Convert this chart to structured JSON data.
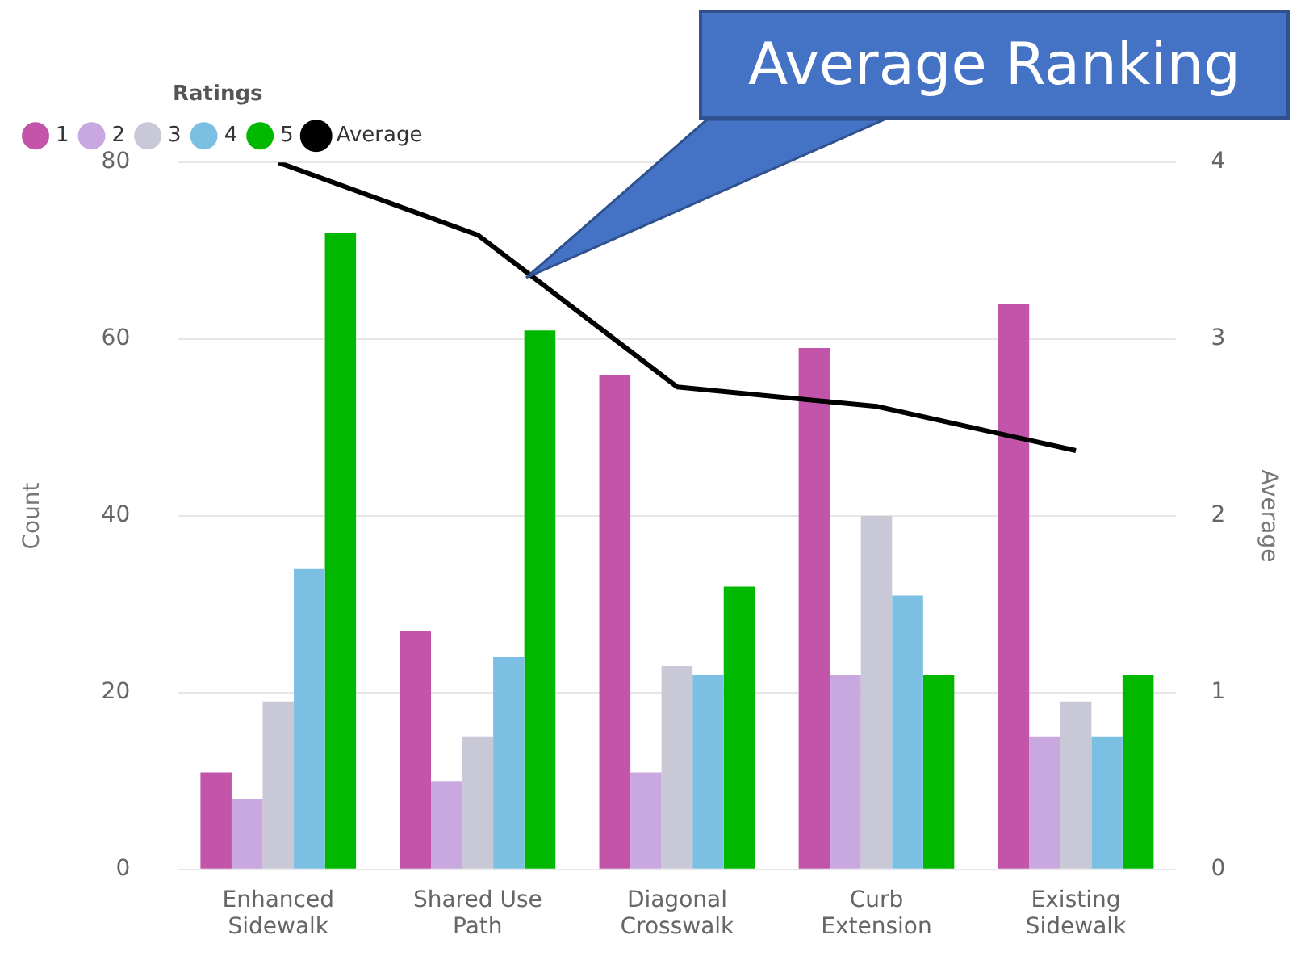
{
  "chart_data": {
    "type": "bar",
    "ylabel": "Count",
    "y2label": "Average",
    "legend_title": "Ratings",
    "legend": "top left",
    "grid": "y",
    "marker": "none",
    "annotations": [
      "Average Ranking"
    ],
    "categories": [
      "Enhanced Sidewalk",
      "Shared Use Path",
      "Diagonal Crosswalk",
      "Curb Extension",
      "Existing Sidewalk"
    ],
    "ylim": [
      0,
      80
    ],
    "yticks": [
      0,
      20,
      40,
      60,
      80
    ],
    "y2lim": [
      0,
      4
    ],
    "y2ticks": [
      0,
      1,
      2,
      3,
      4
    ],
    "series": [
      {
        "name": "1",
        "color": "#c255a9",
        "values": [
          11,
          27,
          56,
          59,
          64
        ]
      },
      {
        "name": "2",
        "color": "#c8a8de",
        "values": [
          8,
          10,
          11,
          22,
          15
        ]
      },
      {
        "name": "3",
        "color": "#c8c8d6",
        "values": [
          19,
          15,
          23,
          40,
          19
        ]
      },
      {
        "name": "4",
        "color": "#7bbfe3",
        "values": [
          34,
          24,
          22,
          31,
          15
        ]
      },
      {
        "name": "5",
        "color": "#00b800",
        "values": [
          72,
          61,
          32,
          22,
          22
        ]
      },
      {
        "name": "Average",
        "type": "line",
        "axis": "y2",
        "color": "#000000",
        "values": [
          4.0,
          3.59,
          2.73,
          2.62,
          2.37
        ]
      }
    ]
  }
}
